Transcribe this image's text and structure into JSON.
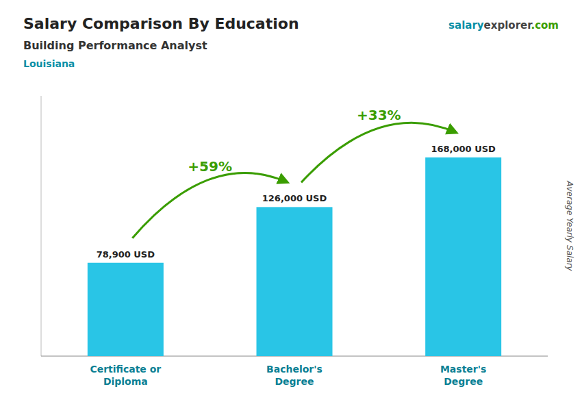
{
  "chart_data": {
    "type": "bar",
    "title": "Salary Comparison By Education",
    "subtitle": "Building Performance Analyst",
    "location": "Louisiana",
    "watermark": [
      "salary",
      "explorer",
      ".com"
    ],
    "y_label": "Average Yearly Salary",
    "categories": [
      "Certificate or\nDiploma",
      "Bachelor's\nDegree",
      "Master's\nDegree"
    ],
    "values": [
      78900,
      126000,
      168000
    ],
    "value_labels": [
      "78,900 USD",
      "126,000 USD",
      "168,000 USD"
    ],
    "annotations": [
      "+59%",
      "+33%"
    ],
    "color": "#29c5e6",
    "ylim": [
      0,
      220000
    ],
    "data_labels": true,
    "tick_labels": "x",
    "grid": false
  }
}
